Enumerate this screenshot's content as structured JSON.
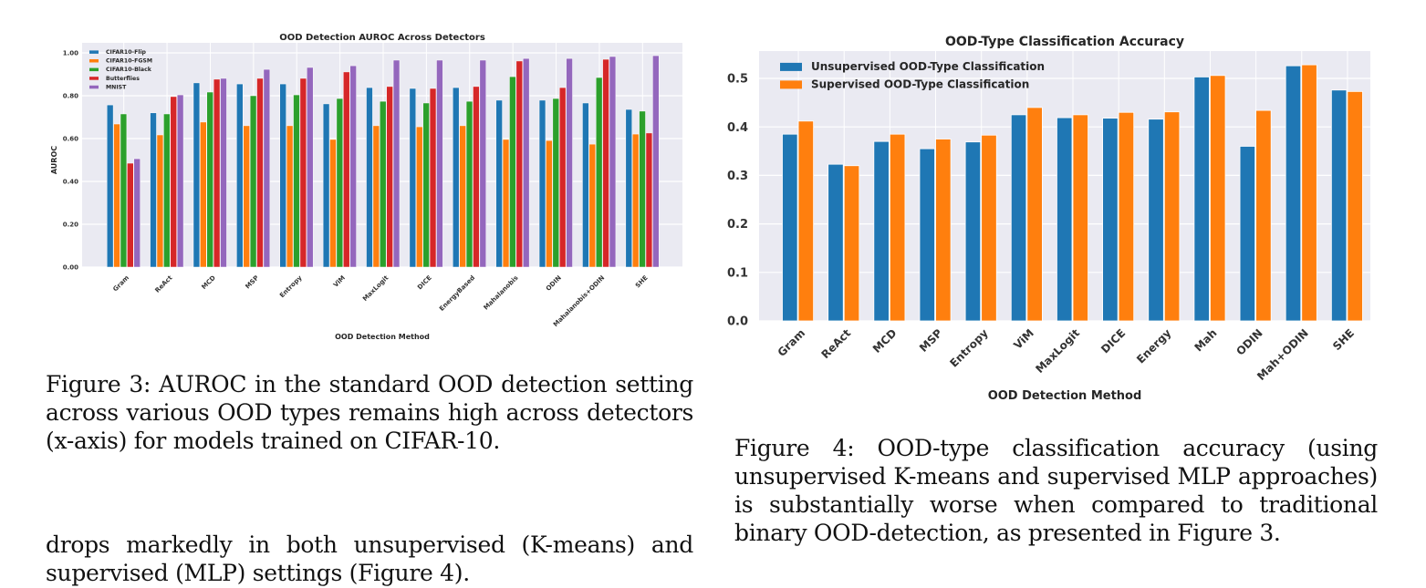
{
  "chart_data": [
    {
      "id": "fig3",
      "type": "bar",
      "title": "OOD Detection AUROC Across Detectors",
      "xlabel": "OOD Detection Method",
      "ylabel": "AUROC",
      "ylim": [
        0,
        1.0
      ],
      "yticks": [
        0.0,
        0.2,
        0.4,
        0.6,
        0.8,
        1.0
      ],
      "ytick_labels": [
        "0.00",
        "0.20",
        "0.40",
        "0.60",
        "0.80",
        "1.00"
      ],
      "grid": true,
      "legend_position": "top-left",
      "categories": [
        "Gram",
        "ReAct",
        "MCD",
        "MSP",
        "Entropy",
        "ViM",
        "MaxLogit",
        "DICE",
        "EnergyBased",
        "Mahalanobis",
        "ODIN",
        "Mahalanobis+ODIN",
        "SHE"
      ],
      "series": [
        {
          "name": "CIFAR10-Flip",
          "color": "#1f77b4",
          "values": [
            0.757,
            0.72,
            0.86,
            0.855,
            0.855,
            0.762,
            0.838,
            0.834,
            0.838,
            0.779,
            0.779,
            0.766,
            0.736
          ]
        },
        {
          "name": "CIFAR10-FGSM",
          "color": "#ff7f0e",
          "values": [
            0.668,
            0.617,
            0.677,
            0.66,
            0.66,
            0.596,
            0.66,
            0.655,
            0.66,
            0.596,
            0.591,
            0.574,
            0.621
          ]
        },
        {
          "name": "CIFAR10-Black",
          "color": "#2ca02c",
          "values": [
            0.715,
            0.715,
            0.817,
            0.8,
            0.804,
            0.787,
            0.774,
            0.766,
            0.774,
            0.889,
            0.787,
            0.885,
            0.728
          ]
        },
        {
          "name": "Butterflies",
          "color": "#d62728",
          "values": [
            0.485,
            0.796,
            0.877,
            0.881,
            0.881,
            0.911,
            0.843,
            0.834,
            0.843,
            0.962,
            0.838,
            0.97,
            0.626
          ]
        },
        {
          "name": "MNIST",
          "color": "#9467bd",
          "values": [
            0.506,
            0.804,
            0.881,
            0.923,
            0.932,
            0.94,
            0.966,
            0.966,
            0.966,
            0.974,
            0.974,
            0.983,
            0.987
          ]
        }
      ]
    },
    {
      "id": "fig4",
      "type": "bar",
      "title": "OOD-Type Classification Accuracy",
      "xlabel": "OOD Detection Method",
      "ylabel": "",
      "ylim": [
        0,
        0.55
      ],
      "yticks": [
        0.0,
        0.1,
        0.2,
        0.3,
        0.4,
        0.5
      ],
      "ytick_labels": [
        "0.0",
        "0.1",
        "0.2",
        "0.3",
        "0.4",
        "0.5"
      ],
      "grid": true,
      "legend_position": "top-left",
      "categories": [
        "Gram",
        "ReAct",
        "MCD",
        "MSP",
        "Entropy",
        "ViM",
        "MaxLogit",
        "DICE",
        "Energy",
        "Mah",
        "ODIN",
        "Mah+ODIN",
        "SHE"
      ],
      "series": [
        {
          "name": "Unsupervised OOD-Type Classification",
          "color": "#1f77b4",
          "values": [
            0.385,
            0.323,
            0.37,
            0.355,
            0.369,
            0.425,
            0.419,
            0.418,
            0.416,
            0.503,
            0.36,
            0.526,
            0.476
          ]
        },
        {
          "name": "Supervised OOD-Type Classification",
          "color": "#ff7f0e",
          "values": [
            0.412,
            0.32,
            0.385,
            0.375,
            0.383,
            0.44,
            0.425,
            0.43,
            0.431,
            0.506,
            0.434,
            0.528,
            0.473
          ]
        }
      ]
    }
  ],
  "captions": {
    "fig3": "Figure 3: AUROC in the standard OOD detection setting across various OOD types remains high across detectors (x-axis) for models trained on CIFAR-10.",
    "fig4": "Figure 4: OOD-type classification accuracy (using unsupervised K-means and supervised MLP approaches) is substantially worse when compared to traditional binary OOD-detection, as presented in Figure 3."
  },
  "body_text": "drops markedly in both unsupervised (K-means) and supervised (MLP) settings (Figure 4)."
}
